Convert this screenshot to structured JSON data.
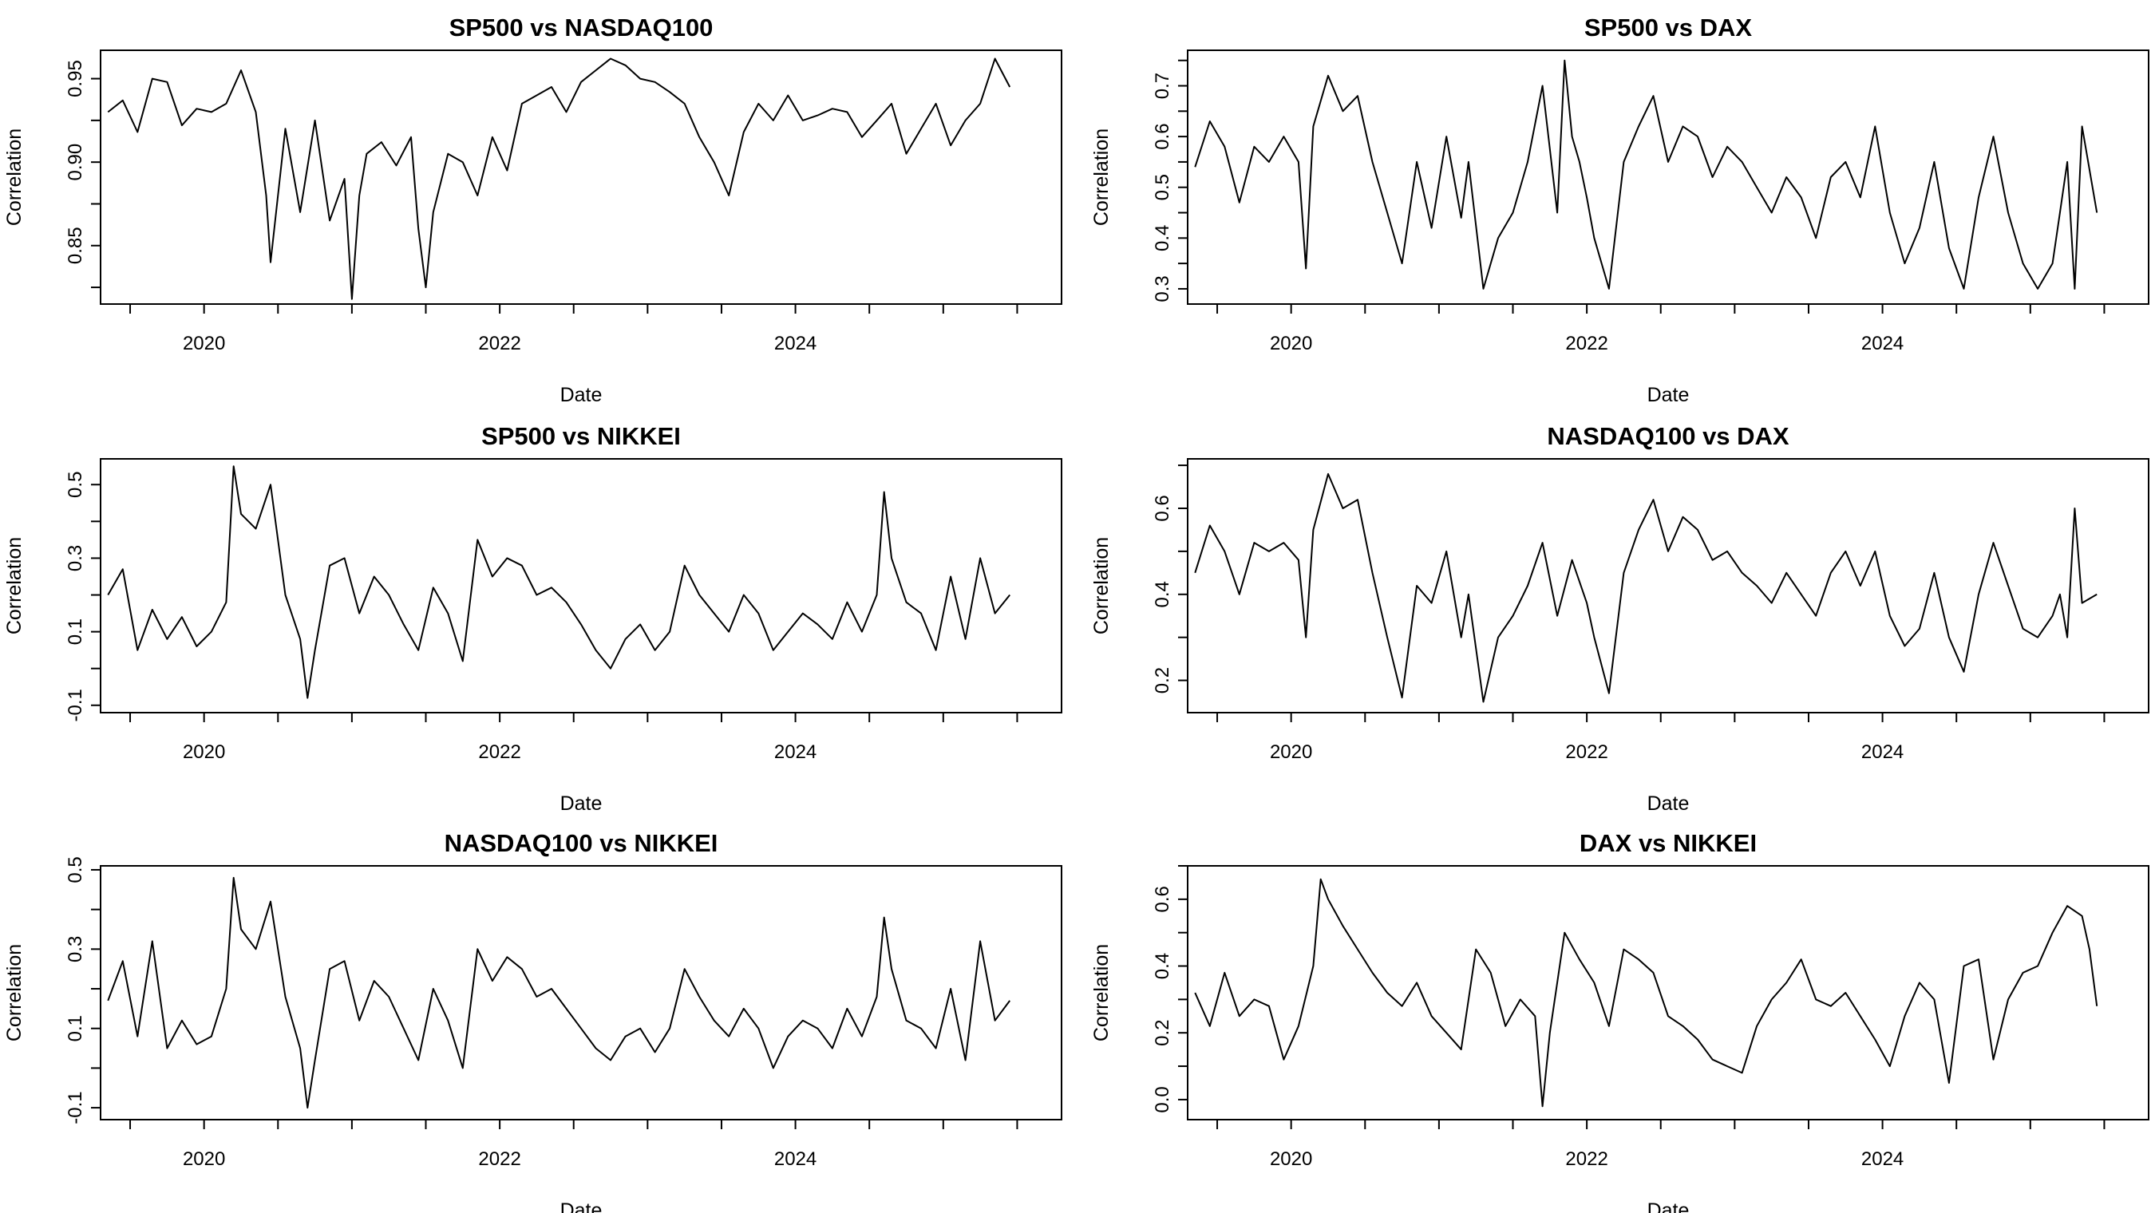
{
  "figure": {
    "background": "#ffffff",
    "line_color": "#000000"
  },
  "chart_data": [
    {
      "type": "line",
      "title": "SP500 vs NASDAQ100",
      "xlabel": "Date",
      "ylabel": "Correlation",
      "xlim": [
        2019.3,
        2025.8
      ],
      "xticks": [
        2020,
        2022,
        2024
      ],
      "xtick_labels": [
        "2020",
        "2022",
        "2024"
      ],
      "ylim": [
        0.815,
        0.967
      ],
      "yticks": [
        0.85,
        0.9,
        0.95
      ],
      "ytick_labels": [
        "0.85",
        "0.90",
        "0.95"
      ],
      "series": [
        {
          "x": [
            2019.35,
            2019.45,
            2019.55,
            2019.65,
            2019.75,
            2019.85,
            2019.95,
            2020.05,
            2020.15,
            2020.25,
            2020.35,
            2020.42,
            2020.45,
            2020.55,
            2020.65,
            2020.75,
            2020.85,
            2020.95,
            2021.0,
            2021.05,
            2021.1,
            2021.2,
            2021.3,
            2021.4,
            2021.45,
            2021.5,
            2021.55,
            2021.65,
            2021.75,
            2021.85,
            2021.95,
            2022.05,
            2022.15,
            2022.25,
            2022.35,
            2022.45,
            2022.55,
            2022.65,
            2022.75,
            2022.85,
            2022.95,
            2023.05,
            2023.15,
            2023.25,
            2023.35,
            2023.45,
            2023.55,
            2023.65,
            2023.75,
            2023.85,
            2023.95,
            2024.05,
            2024.15,
            2024.25,
            2024.35,
            2024.45,
            2024.55,
            2024.65,
            2024.75,
            2024.85,
            2024.95,
            2025.05,
            2025.15,
            2025.25,
            2025.35,
            2025.45
          ],
          "y": [
            0.93,
            0.937,
            0.918,
            0.95,
            0.948,
            0.922,
            0.932,
            0.93,
            0.935,
            0.955,
            0.93,
            0.88,
            0.84,
            0.92,
            0.87,
            0.925,
            0.865,
            0.89,
            0.818,
            0.88,
            0.905,
            0.912,
            0.898,
            0.915,
            0.86,
            0.825,
            0.87,
            0.905,
            0.9,
            0.88,
            0.915,
            0.895,
            0.935,
            0.94,
            0.945,
            0.93,
            0.948,
            0.955,
            0.962,
            0.958,
            0.95,
            0.948,
            0.942,
            0.935,
            0.915,
            0.9,
            0.88,
            0.918,
            0.935,
            0.925,
            0.94,
            0.925,
            0.928,
            0.932,
            0.93,
            0.915,
            0.925,
            0.935,
            0.905,
            0.92,
            0.935,
            0.91,
            0.925,
            0.935,
            0.962,
            0.945
          ]
        }
      ]
    },
    {
      "type": "line",
      "title": "SP500 vs DAX",
      "xlabel": "Date",
      "ylabel": "Correlation",
      "xlim": [
        2019.3,
        2025.8
      ],
      "xticks": [
        2020,
        2022,
        2024
      ],
      "xtick_labels": [
        "2020",
        "2022",
        "2024"
      ],
      "ylim": [
        0.27,
        0.77
      ],
      "yticks": [
        0.3,
        0.4,
        0.5,
        0.6,
        0.7
      ],
      "ytick_labels": [
        "0.3",
        "0.4",
        "0.5",
        "0.6",
        "0.7"
      ],
      "series": [
        {
          "x": [
            2019.35,
            2019.45,
            2019.55,
            2019.65,
            2019.75,
            2019.85,
            2019.95,
            2020.05,
            2020.1,
            2020.15,
            2020.25,
            2020.35,
            2020.45,
            2020.55,
            2020.65,
            2020.75,
            2020.85,
            2020.95,
            2021.05,
            2021.15,
            2021.2,
            2021.3,
            2021.4,
            2021.5,
            2021.6,
            2021.7,
            2021.8,
            2021.85,
            2021.9,
            2021.95,
            2022.0,
            2022.05,
            2022.15,
            2022.25,
            2022.35,
            2022.45,
            2022.55,
            2022.65,
            2022.75,
            2022.85,
            2022.95,
            2023.05,
            2023.15,
            2023.25,
            2023.35,
            2023.45,
            2023.55,
            2023.65,
            2023.75,
            2023.85,
            2023.95,
            2024.05,
            2024.15,
            2024.25,
            2024.35,
            2024.45,
            2024.55,
            2024.65,
            2024.75,
            2024.85,
            2024.95,
            2025.05,
            2025.15,
            2025.2,
            2025.25,
            2025.3,
            2025.35,
            2025.45
          ],
          "y": [
            0.54,
            0.63,
            0.58,
            0.47,
            0.58,
            0.55,
            0.6,
            0.55,
            0.34,
            0.62,
            0.72,
            0.65,
            0.68,
            0.55,
            0.45,
            0.35,
            0.55,
            0.42,
            0.6,
            0.44,
            0.55,
            0.3,
            0.4,
            0.45,
            0.55,
            0.7,
            0.45,
            0.75,
            0.6,
            0.55,
            0.48,
            0.4,
            0.3,
            0.55,
            0.62,
            0.68,
            0.55,
            0.62,
            0.6,
            0.52,
            0.58,
            0.55,
            0.5,
            0.45,
            0.52,
            0.48,
            0.4,
            0.52,
            0.55,
            0.48,
            0.62,
            0.45,
            0.35,
            0.42,
            0.55,
            0.38,
            0.3,
            0.48,
            0.6,
            0.45,
            0.35,
            0.3,
            0.35,
            0.45,
            0.55,
            0.3,
            0.62,
            0.45
          ]
        }
      ]
    },
    {
      "type": "line",
      "title": "SP500 vs NIKKEI",
      "xlabel": "Date",
      "ylabel": "Correlation",
      "xlim": [
        2019.3,
        2025.8
      ],
      "xticks": [
        2020,
        2022,
        2024
      ],
      "xtick_labels": [
        "2020",
        "2022",
        "2024"
      ],
      "ylim": [
        -0.12,
        0.57
      ],
      "yticks": [
        -0.1,
        0.1,
        0.3,
        0.5
      ],
      "ytick_labels": [
        "-0.1",
        "0.1",
        "0.3",
        "0.5"
      ],
      "series": [
        {
          "x": [
            2019.35,
            2019.45,
            2019.55,
            2019.65,
            2019.75,
            2019.85,
            2019.95,
            2020.05,
            2020.15,
            2020.2,
            2020.25,
            2020.35,
            2020.45,
            2020.55,
            2020.65,
            2020.7,
            2020.75,
            2020.85,
            2020.95,
            2021.05,
            2021.15,
            2021.25,
            2021.35,
            2021.45,
            2021.55,
            2021.65,
            2021.75,
            2021.85,
            2021.95,
            2022.05,
            2022.15,
            2022.25,
            2022.35,
            2022.45,
            2022.55,
            2022.65,
            2022.75,
            2022.85,
            2022.95,
            2023.05,
            2023.15,
            2023.25,
            2023.35,
            2023.45,
            2023.55,
            2023.65,
            2023.75,
            2023.85,
            2023.95,
            2024.05,
            2024.15,
            2024.25,
            2024.35,
            2024.45,
            2024.55,
            2024.6,
            2024.65,
            2024.75,
            2024.85,
            2024.95,
            2025.05,
            2025.15,
            2025.25,
            2025.35,
            2025.45
          ],
          "y": [
            0.2,
            0.27,
            0.05,
            0.16,
            0.08,
            0.14,
            0.06,
            0.1,
            0.18,
            0.55,
            0.42,
            0.38,
            0.5,
            0.2,
            0.08,
            -0.08,
            0.05,
            0.28,
            0.3,
            0.15,
            0.25,
            0.2,
            0.12,
            0.05,
            0.22,
            0.15,
            0.02,
            0.35,
            0.25,
            0.3,
            0.28,
            0.2,
            0.22,
            0.18,
            0.12,
            0.05,
            0.0,
            0.08,
            0.12,
            0.05,
            0.1,
            0.28,
            0.2,
            0.15,
            0.1,
            0.2,
            0.15,
            0.05,
            0.1,
            0.15,
            0.12,
            0.08,
            0.18,
            0.1,
            0.2,
            0.48,
            0.3,
            0.18,
            0.15,
            0.05,
            0.25,
            0.08,
            0.3,
            0.15,
            0.2
          ]
        }
      ]
    },
    {
      "type": "line",
      "title": "NASDAQ100 vs DAX",
      "xlabel": "Date",
      "ylabel": "Correlation",
      "xlim": [
        2019.3,
        2025.8
      ],
      "xticks": [
        2020,
        2022,
        2024
      ],
      "xtick_labels": [
        "2020",
        "2022",
        "2024"
      ],
      "ylim": [
        0.125,
        0.715
      ],
      "yticks": [
        0.2,
        0.4,
        0.6
      ],
      "ytick_labels": [
        "0.2",
        "0.4",
        "0.6"
      ],
      "series": [
        {
          "x": [
            2019.35,
            2019.45,
            2019.55,
            2019.65,
            2019.75,
            2019.85,
            2019.95,
            2020.05,
            2020.1,
            2020.15,
            2020.25,
            2020.35,
            2020.45,
            2020.55,
            2020.65,
            2020.75,
            2020.85,
            2020.95,
            2021.05,
            2021.15,
            2021.2,
            2021.3,
            2021.4,
            2021.5,
            2021.6,
            2021.7,
            2021.8,
            2021.9,
            2022.0,
            2022.05,
            2022.15,
            2022.25,
            2022.35,
            2022.45,
            2022.55,
            2022.65,
            2022.75,
            2022.85,
            2022.95,
            2023.05,
            2023.15,
            2023.25,
            2023.35,
            2023.45,
            2023.55,
            2023.65,
            2023.75,
            2023.85,
            2023.95,
            2024.05,
            2024.15,
            2024.25,
            2024.35,
            2024.45,
            2024.55,
            2024.65,
            2024.75,
            2024.85,
            2024.95,
            2025.05,
            2025.15,
            2025.2,
            2025.25,
            2025.3,
            2025.35,
            2025.45
          ],
          "y": [
            0.45,
            0.56,
            0.5,
            0.4,
            0.52,
            0.5,
            0.52,
            0.48,
            0.3,
            0.55,
            0.68,
            0.6,
            0.62,
            0.45,
            0.3,
            0.16,
            0.42,
            0.38,
            0.5,
            0.3,
            0.4,
            0.15,
            0.3,
            0.35,
            0.42,
            0.52,
            0.35,
            0.48,
            0.38,
            0.3,
            0.17,
            0.45,
            0.55,
            0.62,
            0.5,
            0.58,
            0.55,
            0.48,
            0.5,
            0.45,
            0.42,
            0.38,
            0.45,
            0.4,
            0.35,
            0.45,
            0.5,
            0.42,
            0.5,
            0.35,
            0.28,
            0.32,
            0.45,
            0.3,
            0.22,
            0.4,
            0.52,
            0.42,
            0.32,
            0.3,
            0.35,
            0.4,
            0.3,
            0.6,
            0.38,
            0.4
          ]
        }
      ]
    },
    {
      "type": "line",
      "title": "NASDAQ100 vs NIKKEI",
      "xlabel": "Date",
      "ylabel": "Correlation",
      "xlim": [
        2019.3,
        2025.8
      ],
      "xticks": [
        2020,
        2022,
        2024
      ],
      "xtick_labels": [
        "2020",
        "2022",
        "2024"
      ],
      "ylim": [
        -0.13,
        0.51
      ],
      "yticks": [
        -0.1,
        0.1,
        0.3,
        0.5
      ],
      "ytick_labels": [
        "-0.1",
        "0.1",
        "0.3",
        "0.5"
      ],
      "series": [
        {
          "x": [
            2019.35,
            2019.45,
            2019.55,
            2019.65,
            2019.75,
            2019.85,
            2019.95,
            2020.05,
            2020.15,
            2020.2,
            2020.25,
            2020.35,
            2020.45,
            2020.55,
            2020.65,
            2020.7,
            2020.75,
            2020.85,
            2020.95,
            2021.05,
            2021.15,
            2021.25,
            2021.35,
            2021.45,
            2021.55,
            2021.65,
            2021.75,
            2021.85,
            2021.95,
            2022.05,
            2022.15,
            2022.25,
            2022.35,
            2022.45,
            2022.55,
            2022.65,
            2022.75,
            2022.85,
            2022.95,
            2023.05,
            2023.15,
            2023.25,
            2023.35,
            2023.45,
            2023.55,
            2023.65,
            2023.75,
            2023.85,
            2023.95,
            2024.05,
            2024.15,
            2024.25,
            2024.35,
            2024.45,
            2024.55,
            2024.6,
            2024.65,
            2024.75,
            2024.85,
            2024.95,
            2025.05,
            2025.15,
            2025.25,
            2025.35,
            2025.45
          ],
          "y": [
            0.17,
            0.27,
            0.08,
            0.32,
            0.05,
            0.12,
            0.06,
            0.08,
            0.2,
            0.48,
            0.35,
            0.3,
            0.42,
            0.18,
            0.05,
            -0.1,
            0.02,
            0.25,
            0.27,
            0.12,
            0.22,
            0.18,
            0.1,
            0.02,
            0.2,
            0.12,
            0.0,
            0.3,
            0.22,
            0.28,
            0.25,
            0.18,
            0.2,
            0.15,
            0.1,
            0.05,
            0.02,
            0.08,
            0.1,
            0.04,
            0.1,
            0.25,
            0.18,
            0.12,
            0.08,
            0.15,
            0.1,
            0.0,
            0.08,
            0.12,
            0.1,
            0.05,
            0.15,
            0.08,
            0.18,
            0.38,
            0.25,
            0.12,
            0.1,
            0.05,
            0.2,
            0.02,
            0.32,
            0.12,
            0.17
          ]
        }
      ]
    },
    {
      "type": "line",
      "title": "DAX vs NIKKEI",
      "xlabel": "Date",
      "ylabel": "Correlation",
      "xlim": [
        2019.3,
        2025.8
      ],
      "xticks": [
        2020,
        2022,
        2024
      ],
      "xtick_labels": [
        "2020",
        "2022",
        "2024"
      ],
      "ylim": [
        -0.06,
        0.7
      ],
      "yticks": [
        0.0,
        0.2,
        0.4,
        0.6
      ],
      "ytick_labels": [
        "0.0",
        "0.2",
        "0.4",
        "0.6"
      ],
      "series": [
        {
          "x": [
            2019.35,
            2019.45,
            2019.55,
            2019.65,
            2019.75,
            2019.85,
            2019.95,
            2020.05,
            2020.15,
            2020.2,
            2020.25,
            2020.35,
            2020.45,
            2020.55,
            2020.65,
            2020.75,
            2020.85,
            2020.95,
            2021.05,
            2021.15,
            2021.25,
            2021.35,
            2021.45,
            2021.55,
            2021.65,
            2021.7,
            2021.75,
            2021.85,
            2021.95,
            2022.05,
            2022.15,
            2022.25,
            2022.35,
            2022.45,
            2022.55,
            2022.65,
            2022.75,
            2022.85,
            2022.95,
            2023.05,
            2023.15,
            2023.25,
            2023.35,
            2023.45,
            2023.55,
            2023.65,
            2023.75,
            2023.85,
            2023.95,
            2024.05,
            2024.15,
            2024.25,
            2024.35,
            2024.45,
            2024.55,
            2024.65,
            2024.75,
            2024.85,
            2024.95,
            2025.05,
            2025.15,
            2025.25,
            2025.35,
            2025.4,
            2025.45
          ],
          "y": [
            0.32,
            0.22,
            0.38,
            0.25,
            0.3,
            0.28,
            0.12,
            0.22,
            0.4,
            0.66,
            0.6,
            0.52,
            0.45,
            0.38,
            0.32,
            0.28,
            0.35,
            0.25,
            0.2,
            0.15,
            0.45,
            0.38,
            0.22,
            0.3,
            0.25,
            -0.02,
            0.2,
            0.5,
            0.42,
            0.35,
            0.22,
            0.45,
            0.42,
            0.38,
            0.25,
            0.22,
            0.18,
            0.12,
            0.1,
            0.08,
            0.22,
            0.3,
            0.35,
            0.42,
            0.3,
            0.28,
            0.32,
            0.25,
            0.18,
            0.1,
            0.25,
            0.35,
            0.3,
            0.05,
            0.4,
            0.42,
            0.12,
            0.3,
            0.38,
            0.4,
            0.5,
            0.58,
            0.55,
            0.45,
            0.28
          ]
        }
      ]
    }
  ]
}
